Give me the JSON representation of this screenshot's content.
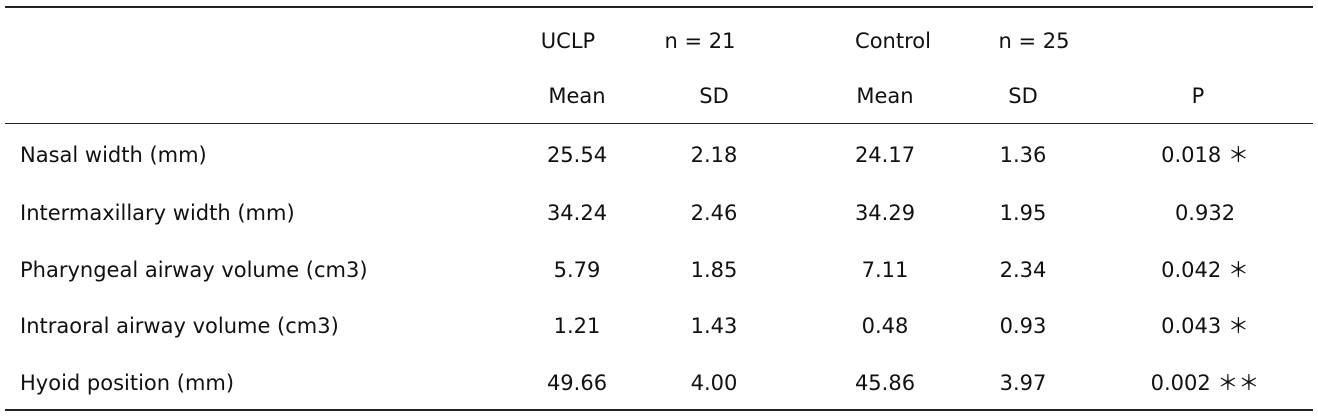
{
  "header": {
    "group1": {
      "label": "UCLP",
      "n": "n = 21"
    },
    "group2": {
      "label": "Control",
      "n": "n = 25"
    },
    "sub": [
      "Mean",
      "SD",
      "Mean",
      "SD",
      "P"
    ]
  },
  "rows": [
    {
      "label": "Nasal width (mm)",
      "uclp_mean": "25.54",
      "uclp_sd": "2.18",
      "ctrl_mean": "24.17",
      "ctrl_sd": "1.36",
      "p": "0.018 ＊"
    },
    {
      "label": "Intermaxillary width (mm)",
      "uclp_mean": "34.24",
      "uclp_sd": "2.46",
      "ctrl_mean": "34.29",
      "ctrl_sd": "1.95",
      "p": "0.932"
    },
    {
      "label": "Pharyngeal airway volume (cm3)",
      "uclp_mean": "5.79",
      "uclp_sd": "1.85",
      "ctrl_mean": "7.11",
      "ctrl_sd": "2.34",
      "p": "0.042 ＊"
    },
    {
      "label": "Intraoral airway volume (cm3)",
      "uclp_mean": "1.21",
      "uclp_sd": "1.43",
      "ctrl_mean": "0.48",
      "ctrl_sd": "0.93",
      "p": "0.043 ＊"
    },
    {
      "label": "Hyoid position (mm)",
      "uclp_mean": "49.66",
      "uclp_sd": "4.00",
      "ctrl_mean": "45.86",
      "ctrl_sd": "3.97",
      "p": "0.002 ＊＊"
    }
  ]
}
